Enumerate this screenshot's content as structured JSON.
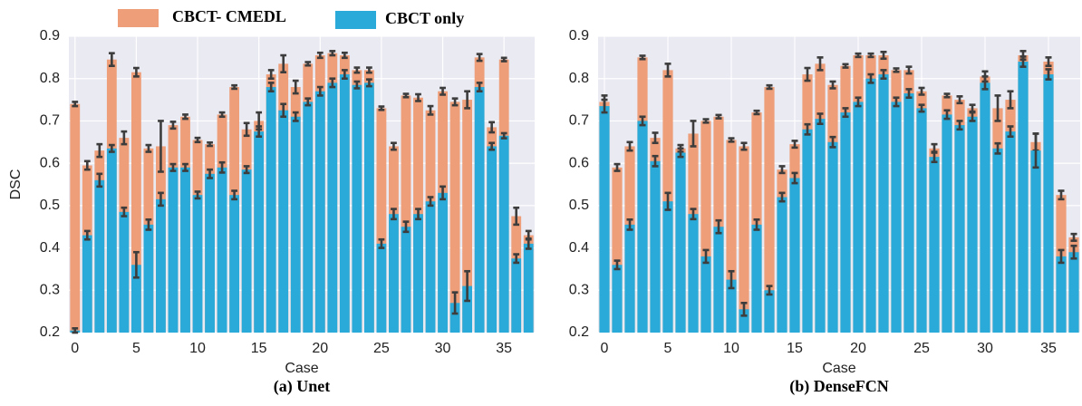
{
  "chart_data": [
    {
      "type": "bar",
      "ylabel": "DSC",
      "xlabel": "Case",
      "caption": "(a) Unet",
      "xlim": [
        -0.5,
        37.5
      ],
      "xticks": [
        0,
        5,
        10,
        15,
        20,
        25,
        30,
        35
      ],
      "ylim": [
        0.2,
        0.9
      ],
      "yticks": [
        0.2,
        0.3,
        0.4,
        0.5,
        0.6,
        0.7,
        0.8,
        0.9
      ],
      "grid": true,
      "x": [
        0,
        1,
        2,
        3,
        4,
        5,
        6,
        7,
        8,
        9,
        10,
        11,
        12,
        13,
        14,
        15,
        16,
        17,
        18,
        19,
        20,
        21,
        22,
        23,
        24,
        25,
        26,
        27,
        28,
        29,
        30,
        31,
        32,
        33,
        34,
        35,
        36,
        37
      ],
      "series": [
        {
          "name": "CBCT- CMEDL",
          "color": "#ee9e78",
          "values": [
            0.74,
            0.595,
            0.63,
            0.845,
            0.66,
            0.815,
            0.635,
            0.64,
            0.69,
            0.71,
            0.655,
            0.645,
            0.715,
            0.78,
            0.68,
            0.7,
            0.81,
            0.835,
            0.78,
            0.835,
            0.855,
            0.86,
            0.855,
            0.82,
            0.82,
            0.73,
            0.64,
            0.76,
            0.755,
            0.725,
            0.77,
            0.745,
            0.75,
            0.85,
            0.685,
            0.845,
            0.475,
            0.43
          ],
          "errors": [
            0.005,
            0.01,
            0.015,
            0.015,
            0.015,
            0.01,
            0.008,
            0.06,
            0.008,
            0.005,
            0.005,
            0.004,
            0.005,
            0.004,
            0.015,
            0.02,
            0.01,
            0.02,
            0.015,
            0.004,
            0.006,
            0.005,
            0.006,
            0.006,
            0.006,
            0.004,
            0.008,
            0.004,
            0.008,
            0.01,
            0.008,
            0.008,
            0.02,
            0.008,
            0.012,
            0.004,
            0.02,
            0.01
          ]
        },
        {
          "name": "CBCT only",
          "color": "#2aaad8",
          "values": [
            0.205,
            0.43,
            0.56,
            0.635,
            0.485,
            0.36,
            0.455,
            0.515,
            0.59,
            0.59,
            0.525,
            0.575,
            0.59,
            0.525,
            0.585,
            0.675,
            0.78,
            0.725,
            0.71,
            0.745,
            0.77,
            0.79,
            0.81,
            0.785,
            0.79,
            0.41,
            0.48,
            0.45,
            0.48,
            0.51,
            0.53,
            0.27,
            0.31,
            0.78,
            0.64,
            0.665,
            0.375,
            0.41
          ],
          "errors": [
            0.005,
            0.01,
            0.015,
            0.008,
            0.01,
            0.03,
            0.012,
            0.015,
            0.008,
            0.008,
            0.008,
            0.01,
            0.012,
            0.01,
            0.008,
            0.012,
            0.01,
            0.015,
            0.01,
            0.008,
            0.01,
            0.01,
            0.01,
            0.008,
            0.008,
            0.01,
            0.012,
            0.012,
            0.012,
            0.01,
            0.015,
            0.025,
            0.035,
            0.01,
            0.008,
            0.006,
            0.01,
            0.012
          ]
        }
      ]
    },
    {
      "type": "bar",
      "xlabel": "Case",
      "caption": "(b) DenseFCN",
      "xlim": [
        -0.5,
        37.5
      ],
      "xticks": [
        0,
        5,
        10,
        15,
        20,
        25,
        30,
        35
      ],
      "ylim": [
        0.2,
        0.9
      ],
      "yticks": [
        0.2,
        0.3,
        0.4,
        0.5,
        0.6,
        0.7,
        0.8,
        0.9
      ],
      "grid": true,
      "x": [
        0,
        1,
        2,
        3,
        4,
        5,
        6,
        7,
        8,
        9,
        10,
        11,
        12,
        13,
        14,
        15,
        16,
        17,
        18,
        19,
        20,
        21,
        22,
        23,
        24,
        25,
        26,
        27,
        28,
        29,
        30,
        31,
        32,
        33,
        34,
        35,
        36,
        37
      ],
      "series": [
        {
          "color": "#ee9e78",
          "values": [
            0.745,
            0.59,
            0.64,
            0.85,
            0.66,
            0.82,
            0.635,
            0.67,
            0.7,
            0.71,
            0.655,
            0.64,
            0.72,
            0.78,
            0.585,
            0.645,
            0.81,
            0.835,
            0.785,
            0.83,
            0.855,
            0.855,
            0.855,
            0.82,
            0.82,
            0.77,
            0.635,
            0.76,
            0.75,
            0.73,
            0.805,
            0.73,
            0.75,
            0.855,
            0.65,
            0.84,
            0.525,
            0.425
          ],
          "errors": [
            0.015,
            0.008,
            0.01,
            0.004,
            0.012,
            0.015,
            0.008,
            0.03,
            0.004,
            0.004,
            0.004,
            0.008,
            0.004,
            0.004,
            0.008,
            0.008,
            0.015,
            0.015,
            0.008,
            0.004,
            0.004,
            0.004,
            0.008,
            0.004,
            0.008,
            0.008,
            0.01,
            0.004,
            0.008,
            0.008,
            0.012,
            0.03,
            0.02,
            0.01,
            0.02,
            0.01,
            0.01,
            0.008
          ]
        },
        {
          "color": "#2aaad8",
          "values": [
            0.735,
            0.36,
            0.455,
            0.7,
            0.605,
            0.51,
            0.625,
            0.48,
            0.38,
            0.45,
            0.325,
            0.255,
            0.455,
            0.3,
            0.52,
            0.565,
            0.68,
            0.705,
            0.65,
            0.72,
            0.745,
            0.8,
            0.81,
            0.745,
            0.765,
            0.73,
            0.615,
            0.715,
            0.69,
            0.71,
            0.79,
            0.635,
            0.675,
            0.84,
            0.63,
            0.81,
            0.38,
            0.39
          ],
          "errors": [
            0.015,
            0.01,
            0.012,
            0.01,
            0.012,
            0.02,
            0.01,
            0.012,
            0.015,
            0.015,
            0.02,
            0.015,
            0.012,
            0.01,
            0.01,
            0.012,
            0.012,
            0.012,
            0.012,
            0.01,
            0.01,
            0.01,
            0.01,
            0.01,
            0.01,
            0.008,
            0.012,
            0.01,
            0.01,
            0.01,
            0.015,
            0.012,
            0.012,
            0.012,
            0.04,
            0.012,
            0.015,
            0.015
          ]
        }
      ]
    }
  ]
}
